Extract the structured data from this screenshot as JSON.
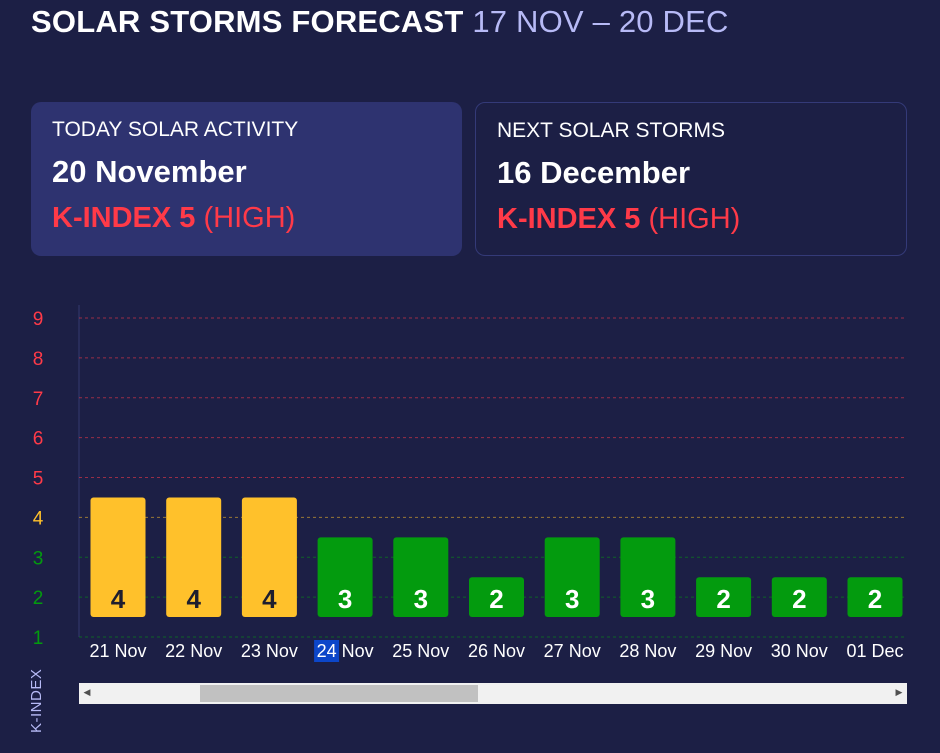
{
  "header": {
    "title": "SOLAR STORMS FORECAST",
    "range": "17 NOV – 20 DEC"
  },
  "today": {
    "label": "TODAY SOLAR ACTIVITY",
    "date": "20 November",
    "k_index": "K-INDEX 5",
    "level": "(HIGH)"
  },
  "next": {
    "label": "NEXT SOLAR STORMS",
    "date": "16 December",
    "k_index": "K-INDEX 5",
    "level": "(HIGH)"
  },
  "colors": {
    "background": "#1c1f45",
    "card_active": "#2e3370",
    "high": "#ff3a48",
    "moderate": "#ffc12b",
    "low": "#039b0e",
    "range_text": "#b7baf6",
    "today_highlight": "#0c46c9"
  },
  "chart_data": {
    "type": "bar",
    "ylabel": "K-INDEX",
    "ylim": [
      1,
      9
    ],
    "yticks": [
      1,
      2,
      3,
      4,
      5,
      6,
      7,
      8,
      9
    ],
    "ytick_colors": {
      "1": "#039b0e",
      "2": "#039b0e",
      "3": "#039b0e",
      "4": "#ffc12b",
      "5": "#ff3a48",
      "6": "#ff3a48",
      "7": "#ff3a48",
      "8": "#ff3a48",
      "9": "#ff3a48"
    },
    "grid": true,
    "highlighted_category": "24 Nov",
    "categories": [
      "21 Nov",
      "22 Nov",
      "23 Nov",
      "24 Nov",
      "25 Nov",
      "26 Nov",
      "27 Nov",
      "28 Nov",
      "29 Nov",
      "30 Nov",
      "01 Dec"
    ],
    "values": [
      4,
      4,
      4,
      3,
      3,
      2,
      3,
      3,
      2,
      2,
      2
    ],
    "bar_colors": [
      "#ffc12b",
      "#ffc12b",
      "#ffc12b",
      "#039b0e",
      "#039b0e",
      "#039b0e",
      "#039b0e",
      "#039b0e",
      "#039b0e",
      "#039b0e",
      "#039b0e"
    ],
    "label_colors": [
      "#1e1e2e",
      "#1e1e2e",
      "#1e1e2e",
      "#ffffff",
      "#ffffff",
      "#ffffff",
      "#ffffff",
      "#ffffff",
      "#ffffff",
      "#ffffff",
      "#ffffff"
    ]
  },
  "scrollbar": {
    "left_arrow": "◀",
    "right_arrow": "▶"
  }
}
